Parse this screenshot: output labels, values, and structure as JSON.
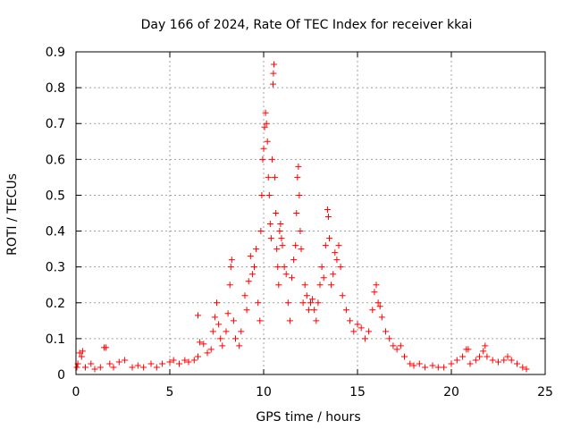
{
  "chart_data": {
    "type": "scatter",
    "title": "Day 166 of 2024, Rate Of TEC Index for receiver kkai",
    "xlabel": "GPS time / hours",
    "ylabel": "ROTI / TECUs",
    "xlim": [
      0,
      25
    ],
    "ylim": [
      0,
      0.9
    ],
    "xticks": [
      0,
      5,
      10,
      15,
      20,
      25
    ],
    "yticks": [
      0,
      0.1,
      0.2,
      0.3,
      0.4,
      0.5,
      0.6,
      0.7,
      0.8,
      0.9
    ],
    "xtick_labels": [
      "0",
      "5",
      "10",
      "15",
      "20",
      "25"
    ],
    "ytick_labels": [
      "0",
      "0.1",
      "0.2",
      "0.3",
      "0.4",
      "0.5",
      "0.6",
      "0.7",
      "0.8",
      "0.9"
    ],
    "grid": true,
    "marker": "+",
    "color": "#ff0000",
    "series": [
      {
        "name": "ROTI",
        "points": [
          [
            0.05,
            0.02
          ],
          [
            0.1,
            0.03
          ],
          [
            0.2,
            0.06
          ],
          [
            0.3,
            0.05
          ],
          [
            0.35,
            0.065
          ],
          [
            0.5,
            0.02
          ],
          [
            0.8,
            0.03
          ],
          [
            1.0,
            0.015
          ],
          [
            1.3,
            0.02
          ],
          [
            1.5,
            0.075
          ],
          [
            1.6,
            0.075
          ],
          [
            1.8,
            0.03
          ],
          [
            2.0,
            0.02
          ],
          [
            2.3,
            0.035
          ],
          [
            2.6,
            0.04
          ],
          [
            3.0,
            0.02
          ],
          [
            3.3,
            0.025
          ],
          [
            3.6,
            0.02
          ],
          [
            4.0,
            0.03
          ],
          [
            4.3,
            0.02
          ],
          [
            4.6,
            0.03
          ],
          [
            5.0,
            0.035
          ],
          [
            5.2,
            0.04
          ],
          [
            5.5,
            0.03
          ],
          [
            5.8,
            0.04
          ],
          [
            6.0,
            0.035
          ],
          [
            6.3,
            0.04
          ],
          [
            6.5,
            0.05
          ],
          [
            6.6,
            0.09
          ],
          [
            6.8,
            0.085
          ],
          [
            6.5,
            0.165
          ],
          [
            7.0,
            0.06
          ],
          [
            7.2,
            0.07
          ],
          [
            7.3,
            0.12
          ],
          [
            7.4,
            0.16
          ],
          [
            7.5,
            0.2
          ],
          [
            7.6,
            0.14
          ],
          [
            7.7,
            0.1
          ],
          [
            7.8,
            0.08
          ],
          [
            8.0,
            0.12
          ],
          [
            8.1,
            0.17
          ],
          [
            8.2,
            0.25
          ],
          [
            8.25,
            0.3
          ],
          [
            8.3,
            0.32
          ],
          [
            8.4,
            0.15
          ],
          [
            8.5,
            0.1
          ],
          [
            8.7,
            0.08
          ],
          [
            8.8,
            0.12
          ],
          [
            9.0,
            0.22
          ],
          [
            9.1,
            0.18
          ],
          [
            9.2,
            0.26
          ],
          [
            9.3,
            0.33
          ],
          [
            9.4,
            0.28
          ],
          [
            9.5,
            0.3
          ],
          [
            9.6,
            0.35
          ],
          [
            9.7,
            0.2
          ],
          [
            9.8,
            0.15
          ],
          [
            9.85,
            0.4
          ],
          [
            9.9,
            0.5
          ],
          [
            9.95,
            0.6
          ],
          [
            10.0,
            0.63
          ],
          [
            10.05,
            0.69
          ],
          [
            10.1,
            0.73
          ],
          [
            10.15,
            0.7
          ],
          [
            10.2,
            0.65
          ],
          [
            10.25,
            0.55
          ],
          [
            10.3,
            0.5
          ],
          [
            10.35,
            0.42
          ],
          [
            10.4,
            0.38
          ],
          [
            10.45,
            0.6
          ],
          [
            10.5,
            0.81
          ],
          [
            10.52,
            0.84
          ],
          [
            10.55,
            0.865
          ],
          [
            10.6,
            0.55
          ],
          [
            10.65,
            0.45
          ],
          [
            10.7,
            0.35
          ],
          [
            10.75,
            0.3
          ],
          [
            10.8,
            0.25
          ],
          [
            10.85,
            0.4
          ],
          [
            10.9,
            0.42
          ],
          [
            10.95,
            0.38
          ],
          [
            11.0,
            0.36
          ],
          [
            11.1,
            0.3
          ],
          [
            11.2,
            0.28
          ],
          [
            11.3,
            0.2
          ],
          [
            11.4,
            0.15
          ],
          [
            11.5,
            0.27
          ],
          [
            11.6,
            0.32
          ],
          [
            11.7,
            0.36
          ],
          [
            11.75,
            0.45
          ],
          [
            11.8,
            0.55
          ],
          [
            11.85,
            0.58
          ],
          [
            11.9,
            0.5
          ],
          [
            11.95,
            0.4
          ],
          [
            12.0,
            0.35
          ],
          [
            12.1,
            0.2
          ],
          [
            12.2,
            0.25
          ],
          [
            12.3,
            0.22
          ],
          [
            12.4,
            0.18
          ],
          [
            12.5,
            0.2
          ],
          [
            12.6,
            0.21
          ],
          [
            12.7,
            0.18
          ],
          [
            12.8,
            0.15
          ],
          [
            12.9,
            0.2
          ],
          [
            13.0,
            0.25
          ],
          [
            13.1,
            0.3
          ],
          [
            13.2,
            0.27
          ],
          [
            13.3,
            0.36
          ],
          [
            13.4,
            0.46
          ],
          [
            13.45,
            0.44
          ],
          [
            13.5,
            0.38
          ],
          [
            13.6,
            0.25
          ],
          [
            13.7,
            0.28
          ],
          [
            13.8,
            0.34
          ],
          [
            13.9,
            0.32
          ],
          [
            14.0,
            0.36
          ],
          [
            14.1,
            0.3
          ],
          [
            14.2,
            0.22
          ],
          [
            14.4,
            0.18
          ],
          [
            14.6,
            0.15
          ],
          [
            14.8,
            0.12
          ],
          [
            15.0,
            0.14
          ],
          [
            15.2,
            0.13
          ],
          [
            15.4,
            0.1
          ],
          [
            15.6,
            0.12
          ],
          [
            15.8,
            0.18
          ],
          [
            15.9,
            0.23
          ],
          [
            16.0,
            0.25
          ],
          [
            16.1,
            0.2
          ],
          [
            16.2,
            0.19
          ],
          [
            16.3,
            0.16
          ],
          [
            16.5,
            0.12
          ],
          [
            16.7,
            0.1
          ],
          [
            16.9,
            0.08
          ],
          [
            17.1,
            0.07
          ],
          [
            17.3,
            0.08
          ],
          [
            17.5,
            0.05
          ],
          [
            17.8,
            0.03
          ],
          [
            18.0,
            0.025
          ],
          [
            18.3,
            0.03
          ],
          [
            18.6,
            0.02
          ],
          [
            19.0,
            0.025
          ],
          [
            19.3,
            0.02
          ],
          [
            19.6,
            0.02
          ],
          [
            20.0,
            0.03
          ],
          [
            20.3,
            0.04
          ],
          [
            20.6,
            0.05
          ],
          [
            20.8,
            0.07
          ],
          [
            20.9,
            0.07
          ],
          [
            21.0,
            0.03
          ],
          [
            21.3,
            0.04
          ],
          [
            21.5,
            0.05
          ],
          [
            21.7,
            0.065
          ],
          [
            21.8,
            0.08
          ],
          [
            21.9,
            0.05
          ],
          [
            22.2,
            0.04
          ],
          [
            22.5,
            0.035
          ],
          [
            22.8,
            0.04
          ],
          [
            23.0,
            0.05
          ],
          [
            23.2,
            0.04
          ],
          [
            23.5,
            0.03
          ],
          [
            23.8,
            0.02
          ],
          [
            24.0,
            0.015
          ]
        ]
      }
    ]
  }
}
